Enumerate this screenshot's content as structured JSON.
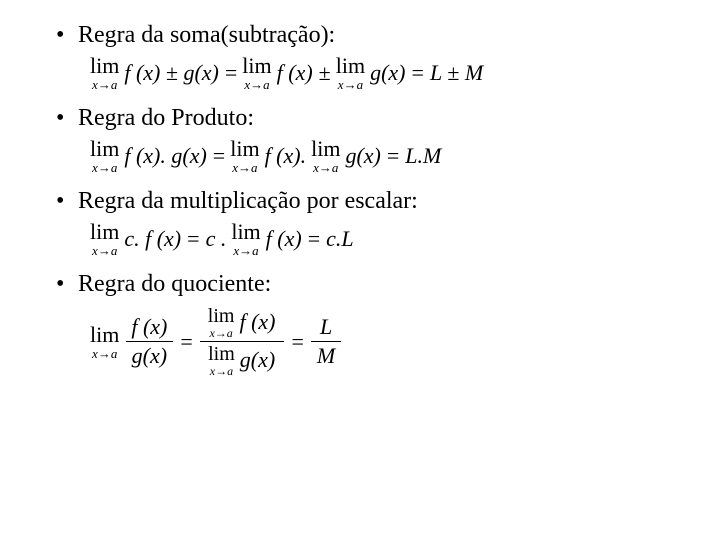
{
  "text_color": "#000000",
  "background_color": "#ffffff",
  "body_fontsize": 24,
  "formula_fontsize": 22,
  "sub_fontsize": 13,
  "items": [
    {
      "label": "Regra da soma(subtração):",
      "formula": {
        "lim_sub": "x→a",
        "lhs_body": "f (x) ± g(x)",
        "eq1": "=",
        "r1": "f (x)",
        "pm": "±",
        "r2": "g(x)",
        "eq2": "=",
        "result": "L ± M"
      }
    },
    {
      "label": "Regra do Produto:",
      "formula": {
        "lim_sub": "x→a",
        "lhs_body": "f (x). g(x)",
        "eq1": "=",
        "r1": "f (x).",
        "r2": "g(x)",
        "eq2": "=",
        "result": "L.M"
      }
    },
    {
      "label": "Regra da multiplicação por escalar:",
      "formula": {
        "lim_sub": "x→a",
        "lhs_body": "c. f (x)",
        "eq1": "=",
        "mid_c": "c .",
        "r1": "f (x)",
        "eq2": "=",
        "result": "c.L"
      }
    },
    {
      "label": "Regra do quociente:",
      "formula": {
        "lim_sub": "x→a",
        "num1": "f (x)",
        "den1": "g(x)",
        "eq1": "=",
        "num2": "f (x)",
        "den2": "g(x)",
        "eq2": "=",
        "result_num": "L",
        "result_den": "M"
      }
    }
  ],
  "lim_word": "lim",
  "bullet": "•"
}
